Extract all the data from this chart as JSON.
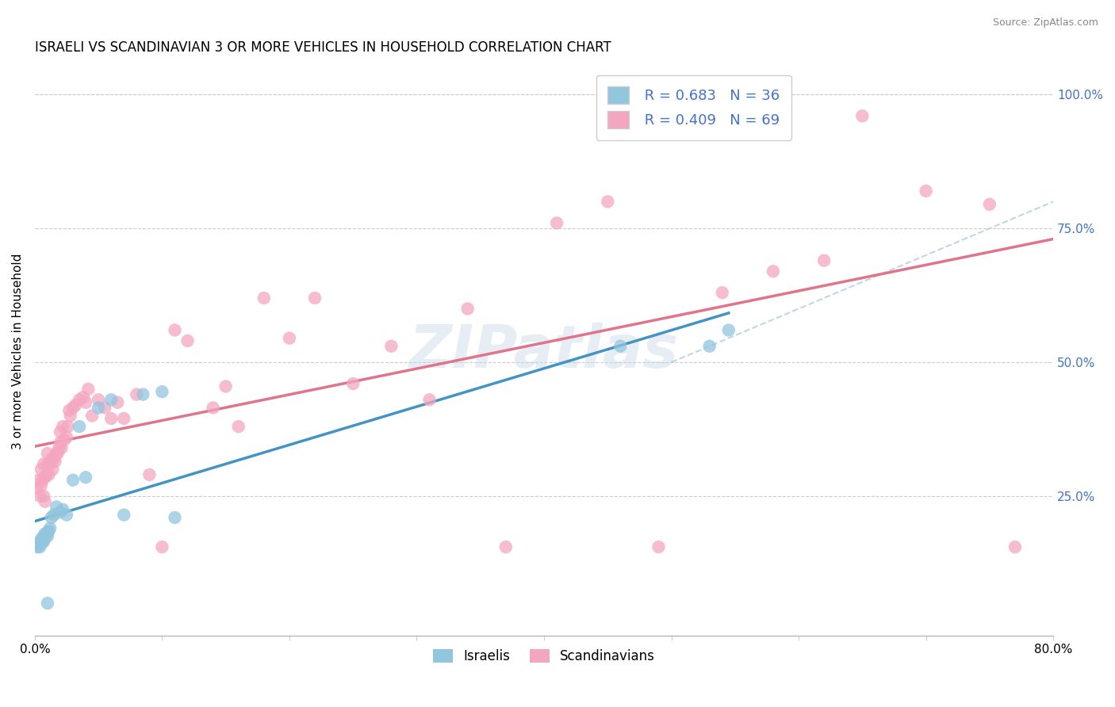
{
  "title": "ISRAELI VS SCANDINAVIAN 3 OR MORE VEHICLES IN HOUSEHOLD CORRELATION CHART",
  "source": "Source: ZipAtlas.com",
  "ylabel": "3 or more Vehicles in Household",
  "xlim": [
    0.0,
    0.8
  ],
  "ylim": [
    -0.01,
    1.05
  ],
  "xtickvals": [
    0.0,
    0.1,
    0.2,
    0.3,
    0.4,
    0.5,
    0.6,
    0.7,
    0.8
  ],
  "xticklabels": [
    "0.0%",
    "",
    "",
    "",
    "",
    "",
    "",
    "",
    "80.0%"
  ],
  "ytickvals_right": [
    0.25,
    0.5,
    0.75,
    1.0
  ],
  "yticklabels_right": [
    "25.0%",
    "50.0%",
    "75.0%",
    "100.0%"
  ],
  "israeli_color": "#92c5de",
  "scandinavian_color": "#f4a6c0",
  "trendline_israeli_color": "#4393c3",
  "trendline_scandinavian_color": "#e0748a",
  "diagonal_color": "#b0cce0",
  "legend_R_israeli": "R = 0.683",
  "legend_N_israeli": "N = 36",
  "legend_R_scand": "R = 0.409",
  "legend_N_scand": "N = 69",
  "watermark": "ZIPatlas",
  "israeli_x": [
    0.002,
    0.003,
    0.004,
    0.004,
    0.005,
    0.005,
    0.006,
    0.006,
    0.007,
    0.007,
    0.008,
    0.008,
    0.009,
    0.01,
    0.01,
    0.011,
    0.012,
    0.013,
    0.015,
    0.017,
    0.02,
    0.022,
    0.025,
    0.03,
    0.035,
    0.04,
    0.05,
    0.06,
    0.07,
    0.085,
    0.1,
    0.11,
    0.46,
    0.53,
    0.545,
    0.01
  ],
  "israeli_y": [
    0.155,
    0.16,
    0.155,
    0.16,
    0.165,
    0.17,
    0.165,
    0.17,
    0.165,
    0.175,
    0.175,
    0.18,
    0.178,
    0.175,
    0.182,
    0.185,
    0.19,
    0.21,
    0.215,
    0.23,
    0.22,
    0.225,
    0.215,
    0.28,
    0.38,
    0.285,
    0.415,
    0.43,
    0.215,
    0.44,
    0.445,
    0.21,
    0.53,
    0.53,
    0.56,
    0.05
  ],
  "scandinavian_x": [
    0.002,
    0.003,
    0.004,
    0.005,
    0.005,
    0.006,
    0.007,
    0.007,
    0.008,
    0.008,
    0.009,
    0.01,
    0.01,
    0.011,
    0.012,
    0.013,
    0.014,
    0.015,
    0.016,
    0.017,
    0.018,
    0.019,
    0.02,
    0.02,
    0.021,
    0.022,
    0.023,
    0.025,
    0.026,
    0.027,
    0.028,
    0.03,
    0.032,
    0.035,
    0.038,
    0.04,
    0.042,
    0.045,
    0.05,
    0.055,
    0.06,
    0.065,
    0.07,
    0.08,
    0.09,
    0.1,
    0.11,
    0.12,
    0.14,
    0.15,
    0.16,
    0.18,
    0.2,
    0.22,
    0.25,
    0.28,
    0.31,
    0.34,
    0.37,
    0.41,
    0.45,
    0.49,
    0.54,
    0.58,
    0.62,
    0.65,
    0.7,
    0.75,
    0.77
  ],
  "scandinavian_y": [
    0.265,
    0.28,
    0.25,
    0.27,
    0.3,
    0.28,
    0.25,
    0.31,
    0.24,
    0.285,
    0.29,
    0.31,
    0.33,
    0.29,
    0.31,
    0.32,
    0.3,
    0.32,
    0.315,
    0.33,
    0.33,
    0.34,
    0.35,
    0.37,
    0.34,
    0.38,
    0.355,
    0.36,
    0.38,
    0.41,
    0.4,
    0.415,
    0.42,
    0.43,
    0.435,
    0.425,
    0.45,
    0.4,
    0.43,
    0.415,
    0.395,
    0.425,
    0.395,
    0.44,
    0.29,
    0.155,
    0.56,
    0.54,
    0.415,
    0.455,
    0.38,
    0.62,
    0.545,
    0.62,
    0.46,
    0.53,
    0.43,
    0.6,
    0.155,
    0.76,
    0.8,
    0.155,
    0.63,
    0.67,
    0.69,
    0.96,
    0.82,
    0.795,
    0.155
  ]
}
